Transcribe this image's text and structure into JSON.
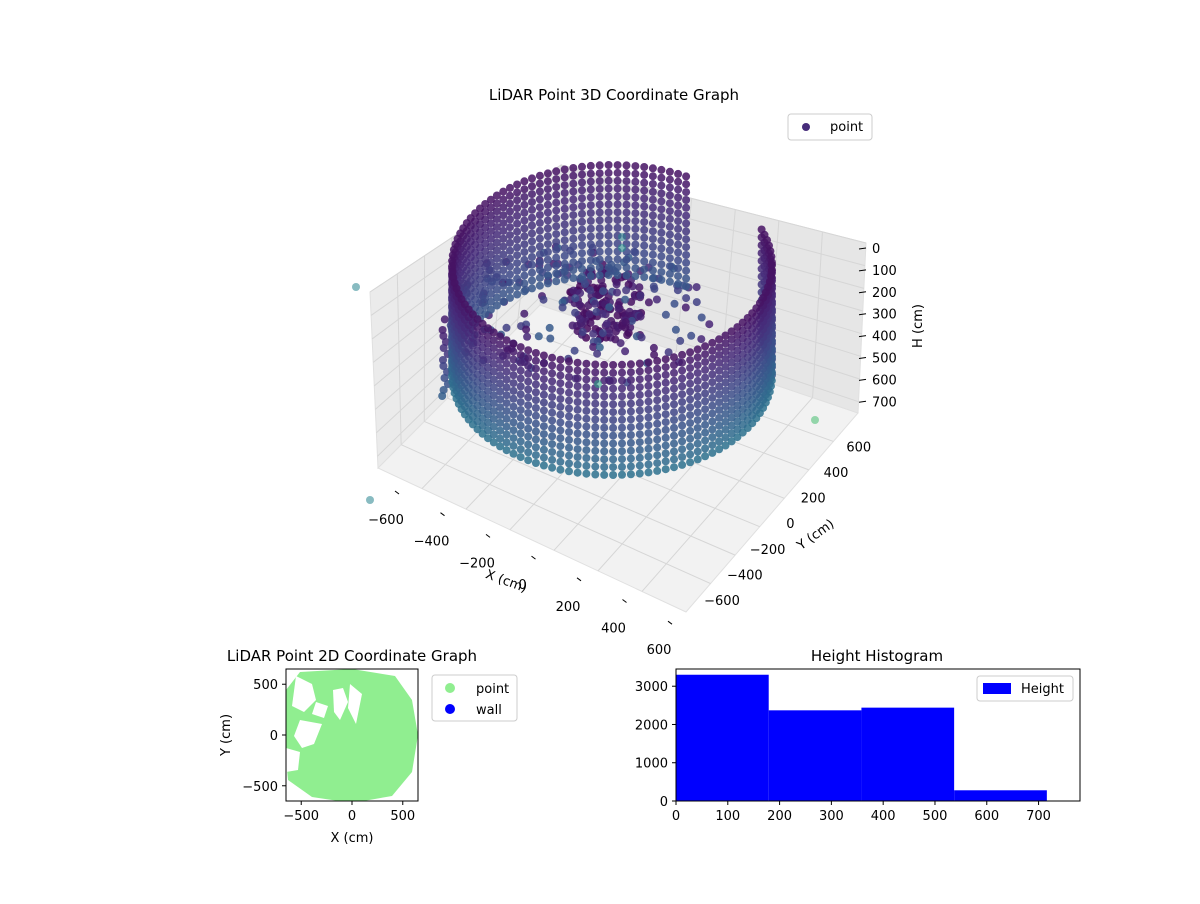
{
  "chart_data": [
    {
      "type": "scatter",
      "title": "LiDAR Point 3D Coordinate Graph",
      "xlabel": "X (cm)",
      "ylabel": "Y (cm)",
      "zlabel": "H (cm)",
      "xlim": [
        -650,
        650
      ],
      "ylim": [
        -650,
        650
      ],
      "zlim": [
        0,
        750
      ],
      "z_inverted": true,
      "x_ticks": [
        "−600",
        "−400",
        "−200",
        "0",
        "200",
        "400",
        "600"
      ],
      "y_ticks": [
        "−600",
        "−400",
        "−200",
        "0",
        "200",
        "400",
        "600"
      ],
      "z_ticks": [
        "0",
        "100",
        "200",
        "300",
        "400",
        "500",
        "600",
        "700"
      ],
      "legend": {
        "position": "top-right",
        "entries": [
          {
            "name": "point",
            "color": "#472d7b"
          }
        ]
      },
      "colormap": "viridis",
      "shape": {
        "wall_radius": 560,
        "wall_gap_deg": [
          300,
          340
        ],
        "wall_height": [
          0,
          650
        ]
      },
      "grid": true
    },
    {
      "type": "scatter",
      "title": "LiDAR Point 2D Coordinate Graph",
      "xlabel": "X (cm)",
      "ylabel": "Y (cm)",
      "xlim": [
        -650,
        650
      ],
      "ylim": [
        -650,
        650
      ],
      "x_ticks": [
        "−500",
        "0",
        "500"
      ],
      "y_ticks": [
        "500",
        "0",
        "−500"
      ],
      "legend": {
        "position": "outside-right",
        "entries": [
          {
            "name": "point",
            "color": "#90ee90"
          },
          {
            "name": "wall",
            "color": "#0000ff"
          }
        ]
      },
      "grid": false
    },
    {
      "type": "bar",
      "title": "Height Histogram",
      "bins": [
        {
          "x0": 0,
          "x1": 179,
          "count": 3300
        },
        {
          "x0": 179,
          "x1": 358,
          "count": 2370
        },
        {
          "x0": 358,
          "x1": 537,
          "count": 2440
        },
        {
          "x0": 537,
          "x1": 716,
          "count": 280
        }
      ],
      "xlim": [
        0,
        780
      ],
      "ylim": [
        0,
        3450
      ],
      "x_ticks": [
        0,
        100,
        200,
        300,
        400,
        500,
        600,
        700
      ],
      "y_ticks": [
        0,
        1000,
        2000,
        3000
      ],
      "legend": {
        "position": "top-right",
        "entries": [
          {
            "name": "Height",
            "color": "#0000ff"
          }
        ]
      },
      "grid": false
    }
  ]
}
